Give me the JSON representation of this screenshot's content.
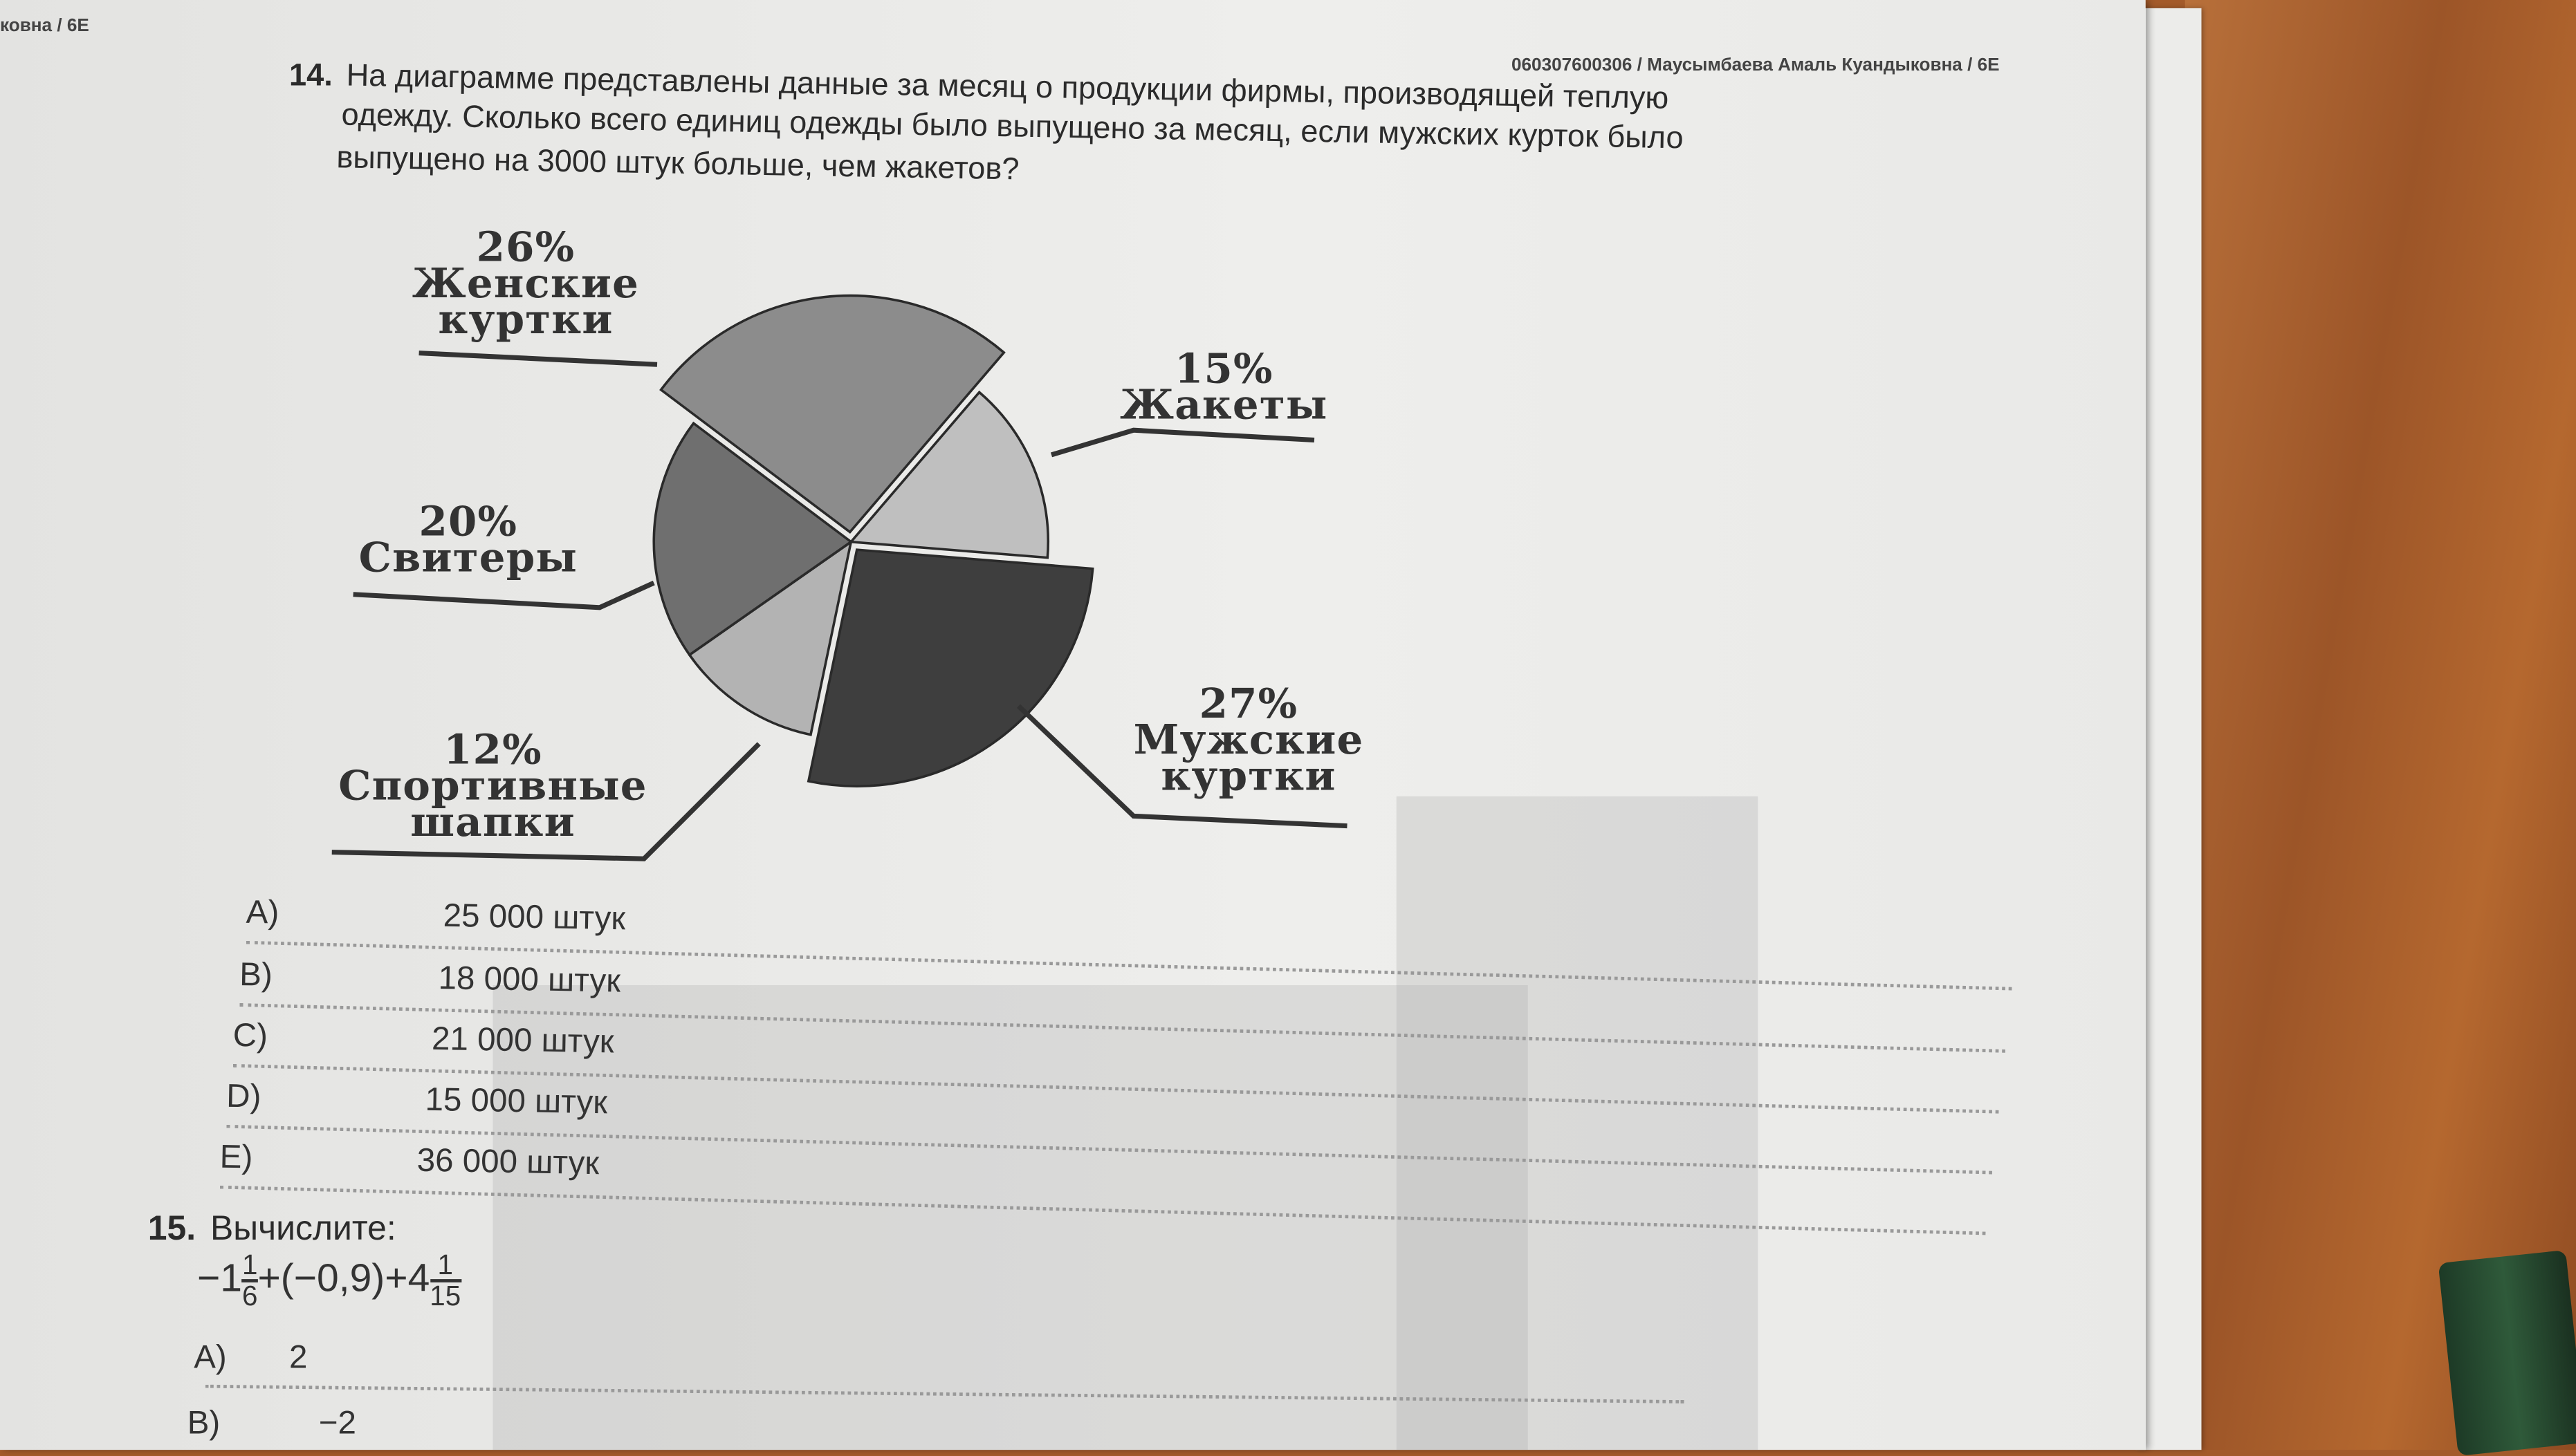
{
  "corner_text": "ковна / 6Е",
  "header": "060307600306 / Маусымбаева Амаль Куандыковна / 6Е",
  "q14": {
    "number": "14.",
    "lines": [
      "На диаграмме представлены данные за месяц о продукции фирмы, производящей теплую",
      "одежду. Сколько всего единиц одежды было выпущено за месяц, если мужских курток было",
      "выпущено на 3000 штук больше, чем жакетов?"
    ],
    "options": [
      {
        "letter": "A)",
        "text": "25 000 штук"
      },
      {
        "letter": "B)",
        "text": "18 000 штук"
      },
      {
        "letter": "C)",
        "text": "21 000 штук"
      },
      {
        "letter": "D)",
        "text": "15 000 штук"
      },
      {
        "letter": "E)",
        "text": "36 000 штук"
      }
    ]
  },
  "chart_data": {
    "type": "pie",
    "slices": [
      {
        "pct": "26%",
        "value": 26,
        "label1": "Женские",
        "label2": "куртки",
        "color": "#8c8c8c",
        "exploded": true
      },
      {
        "pct": "15%",
        "value": 15,
        "label1": "Жакеты",
        "label2": "",
        "color": "#bfbfbf",
        "exploded": false
      },
      {
        "pct": "27%",
        "value": 27,
        "label1": "Мужские",
        "label2": "куртки",
        "color": "#3e3e3e",
        "exploded": true
      },
      {
        "pct": "12%",
        "value": 12,
        "label1": "Спортивные",
        "label2": "шапки",
        "color": "#b3b3b3",
        "exploded": false
      },
      {
        "pct": "20%",
        "value": 20,
        "label1": "Свитеры",
        "label2": "",
        "color": "#6f6f6f",
        "exploded": false
      }
    ]
  },
  "q15": {
    "number": "15.",
    "title": "Вычислите:",
    "expr": {
      "a_sign": "−1",
      "a_num": "1",
      "a_den": "6",
      "mid": "+(−0,9)+4",
      "b_num": "1",
      "b_den": "15"
    },
    "options": [
      {
        "letter": "A)",
        "text": "2"
      },
      {
        "letter": "B)",
        "text": "−2",
        "num": "2"
      }
    ]
  }
}
